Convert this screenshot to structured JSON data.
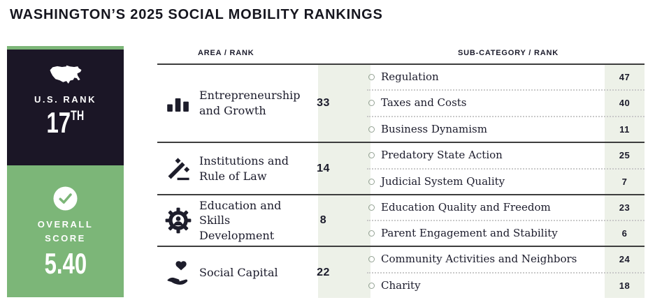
{
  "title": "WASHINGTON’S 2025 SOCIAL MOBILITY RANKINGS",
  "sidebar": {
    "us_rank_label": "U.S. RANK",
    "us_rank_value": "17",
    "us_rank_ordinal": "TH",
    "overall_score_label": "OVERALL SCORE",
    "overall_score_value": "5.40"
  },
  "table_headers": {
    "area": "AREA / RANK",
    "subcategory": "SUB-CATEGORY / RANK"
  },
  "colors": {
    "dark_panel": "#1b1626",
    "green_panel": "#7cb678",
    "rank_column_bg": "#edf1e8",
    "text_dark": "#1b1b2b"
  },
  "chart_data": {
    "type": "table",
    "title": "WASHINGTON'S 2025 SOCIAL MOBILITY RANKINGS",
    "us_rank": 17,
    "overall_score": 5.4,
    "columns": [
      "Area",
      "Area Rank",
      "Sub-Category",
      "Sub-Category Rank"
    ],
    "areas": [
      {
        "icon": "bar-chart-icon",
        "label": "Entrepreneurship\nand Growth",
        "rank": 33,
        "subcategories": [
          {
            "label": "Regulation",
            "rank": 47
          },
          {
            "label": "Taxes and Costs",
            "rank": 40
          },
          {
            "label": "Business Dynamism",
            "rank": 11
          }
        ]
      },
      {
        "icon": "gavel-icon",
        "label": "Institutions and\nRule of Law",
        "rank": 14,
        "subcategories": [
          {
            "label": "Predatory State Action",
            "rank": 25
          },
          {
            "label": "Judicial System Quality",
            "rank": 7
          }
        ]
      },
      {
        "icon": "gear-person-icon",
        "label": "Education and\nSkills Development",
        "rank": 8,
        "subcategories": [
          {
            "label": "Education Quality and Freedom",
            "rank": 23
          },
          {
            "label": "Parent Engagement and Stability",
            "rank": 6
          }
        ]
      },
      {
        "icon": "heart-hand-icon",
        "label": "Social Capital",
        "rank": 22,
        "subcategories": [
          {
            "label": "Community Activities and Neighbors",
            "rank": 24
          },
          {
            "label": "Charity",
            "rank": 18
          }
        ]
      }
    ]
  }
}
